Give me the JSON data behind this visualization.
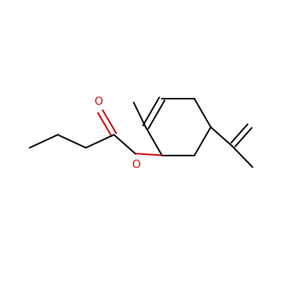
{
  "background_color": "#ffffff",
  "bond_color": "#000000",
  "oxygen_color": "#cc0000",
  "line_width": 1.6,
  "figsize": [
    4.26,
    4.13
  ],
  "dpi": 100,
  "xlim": [
    0,
    8.52
  ],
  "ylim": [
    0,
    8.26
  ]
}
